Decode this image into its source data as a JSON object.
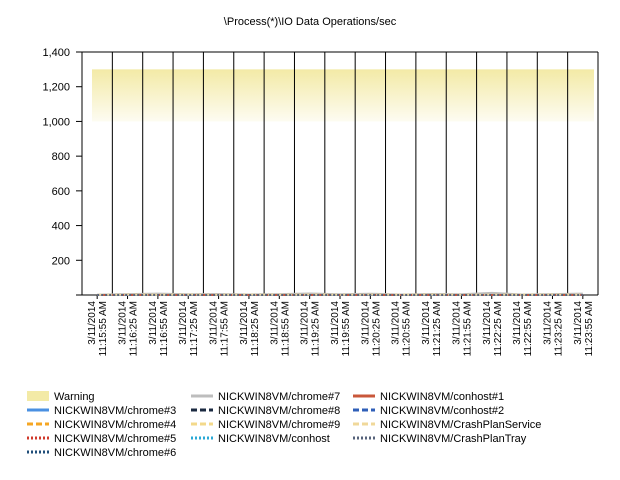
{
  "chart_data": {
    "type": "line",
    "title": "\\Process(*)\\IO Data Operations/sec",
    "xlabel": "",
    "ylabel": "",
    "ylim": [
      0,
      1400
    ],
    "y_ticks": [
      200,
      400,
      600,
      800,
      1000,
      1200,
      1400
    ],
    "y_tick_labels": [
      "200",
      "400",
      "600",
      "800",
      "1,000",
      "1,200",
      "1,400"
    ],
    "grid": {
      "vertical": true,
      "horizontal": false
    },
    "categories": [
      [
        "3/11/2014",
        "11:15:55 AM"
      ],
      [
        "3/11/2014",
        "11:16:25 AM"
      ],
      [
        "3/11/2014",
        "11:16:55 AM"
      ],
      [
        "3/11/2014",
        "11:17:25 AM"
      ],
      [
        "3/11/2014",
        "11:17:55 AM"
      ],
      [
        "3/11/2014",
        "11:18:25 AM"
      ],
      [
        "3/11/2014",
        "11:18:55 AM"
      ],
      [
        "3/11/2014",
        "11:19:25 AM"
      ],
      [
        "3/11/2014",
        "11:19:55 AM"
      ],
      [
        "3/11/2014",
        "11:20:25 AM"
      ],
      [
        "3/11/2014",
        "11:20:55 AM"
      ],
      [
        "3/11/2014",
        "11:21:25 AM"
      ],
      [
        "3/11/2014",
        "11:21:55 AM"
      ],
      [
        "3/11/2014",
        "11:22:25 AM"
      ],
      [
        "3/11/2014",
        "11:22:55 AM"
      ],
      [
        "3/11/2014",
        "11:23:25 AM"
      ],
      [
        "3/11/2014",
        "11:23:55 AM"
      ]
    ],
    "warning_band": {
      "name": "Warning",
      "from": 1000,
      "to": 1300,
      "color": "#f3eaa6"
    },
    "legend_position": "bottom",
    "series": [
      {
        "name": "NICKWIN8VM/chrome#3",
        "color": "#4a90e2",
        "dash": "solid",
        "values": [
          0,
          1,
          1,
          0,
          1,
          1,
          0,
          1,
          1,
          0,
          1,
          1,
          0,
          1,
          1,
          0,
          1
        ]
      },
      {
        "name": "NICKWIN8VM/chrome#4",
        "color": "#f5a623",
        "dash": "dash",
        "values": [
          0,
          0,
          1,
          0,
          0,
          1,
          0,
          0,
          1,
          0,
          0,
          1,
          0,
          0,
          1,
          0,
          0
        ]
      },
      {
        "name": "NICKWIN8VM/chrome#5",
        "color": "#d0392b",
        "dash": "dot",
        "values": [
          0,
          1,
          0,
          0,
          1,
          0,
          0,
          1,
          0,
          0,
          1,
          0,
          0,
          1,
          0,
          0,
          1
        ]
      },
      {
        "name": "NICKWIN8VM/chrome#6",
        "color": "#1f4e79",
        "dash": "dot",
        "values": [
          0,
          0,
          0,
          1,
          0,
          0,
          0,
          1,
          0,
          0,
          0,
          1,
          0,
          0,
          0,
          1,
          0
        ]
      },
      {
        "name": "NICKWIN8VM/chrome#7",
        "color": "#bdbdbd",
        "dash": "solid",
        "values": [
          2,
          5,
          8,
          4,
          6,
          3,
          5,
          9,
          4,
          7,
          3,
          6,
          4,
          12,
          3,
          5,
          8
        ]
      },
      {
        "name": "NICKWIN8VM/chrome#8",
        "color": "#1b2a41",
        "dash": "dash",
        "values": [
          0,
          1,
          0,
          1,
          0,
          1,
          0,
          1,
          0,
          1,
          0,
          1,
          0,
          1,
          0,
          1,
          0
        ]
      },
      {
        "name": "NICKWIN8VM/chrome#9",
        "color": "#f3d98b",
        "dash": "dash",
        "values": [
          0,
          0,
          1,
          1,
          0,
          0,
          1,
          1,
          0,
          0,
          1,
          1,
          0,
          0,
          1,
          1,
          0
        ]
      },
      {
        "name": "NICKWIN8VM/conhost",
        "color": "#2aa9d6",
        "dash": "dot",
        "values": [
          0,
          0,
          0,
          0,
          0,
          0,
          0,
          0,
          0,
          0,
          0,
          0,
          0,
          0,
          0,
          0,
          0
        ]
      },
      {
        "name": "NICKWIN8VM/conhost#1",
        "color": "#c9573a",
        "dash": "solid",
        "values": [
          0,
          0,
          0,
          0,
          0,
          0,
          0,
          0,
          0,
          0,
          0,
          0,
          0,
          0,
          0,
          0,
          0
        ]
      },
      {
        "name": "NICKWIN8VM/conhost#2",
        "color": "#2f5fb8",
        "dash": "dash",
        "values": [
          0,
          0,
          0,
          0,
          0,
          0,
          0,
          0,
          0,
          0,
          0,
          0,
          0,
          0,
          0,
          0,
          0
        ]
      },
      {
        "name": "NICKWIN8VM/CrashPlanService",
        "color": "#f0d89a",
        "dash": "dash",
        "values": [
          1,
          2,
          1,
          2,
          1,
          2,
          1,
          2,
          1,
          2,
          1,
          2,
          1,
          2,
          1,
          2,
          1
        ]
      },
      {
        "name": "NICKWIN8VM/CrashPlanTray",
        "color": "#56627a",
        "dash": "dot",
        "values": [
          0,
          0,
          0,
          0,
          0,
          0,
          0,
          0,
          0,
          0,
          0,
          0,
          0,
          0,
          0,
          0,
          0
        ]
      }
    ]
  }
}
